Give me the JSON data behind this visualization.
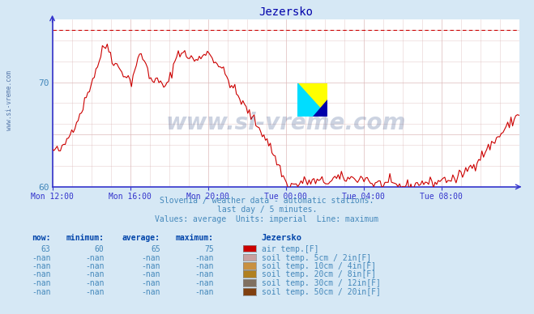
{
  "title": "Jezersko",
  "background_color": "#d6e8f5",
  "plot_bg_color": "#ffffff",
  "grid_color": "#ddbbbb",
  "line_color": "#cc0000",
  "dashed_line_color": "#cc0000",
  "dashed_line_y": 75,
  "ylim": [
    60,
    76
  ],
  "yticks": [
    60,
    65,
    70,
    75
  ],
  "ylabel_vals": [
    "60",
    "70"
  ],
  "subtitle1": "Slovenia / weather data - automatic stations.",
  "subtitle2": "last day / 5 minutes.",
  "subtitle3": "Values: average  Units: imperial  Line: maximum",
  "watermark": "www.si-vreme.com",
  "legend_station": "Jezersko",
  "legend_items": [
    {
      "label": "air temp.[F]",
      "color": "#cc0000"
    },
    {
      "label": "soil temp. 5cm / 2in[F]",
      "color": "#c8a0a0"
    },
    {
      "label": "soil temp. 10cm / 4in[F]",
      "color": "#c89040"
    },
    {
      "label": "soil temp. 20cm / 8in[F]",
      "color": "#b08020"
    },
    {
      "label": "soil temp. 30cm / 12in[F]",
      "color": "#807060"
    },
    {
      "label": "soil temp. 50cm / 20in[F]",
      "color": "#804010"
    }
  ],
  "stats_air": [
    "63",
    "60",
    "65",
    "75"
  ],
  "xtick_labels": [
    "Mon 12:00",
    "Mon 16:00",
    "Mon 20:00",
    "Tue 00:00",
    "Tue 04:00",
    "Tue 08:00"
  ],
  "xtick_positions": [
    0.0,
    0.1667,
    0.3333,
    0.5,
    0.6667,
    0.8333
  ],
  "title_color": "#0000aa",
  "text_color": "#4488bb",
  "axis_color": "#3333cc",
  "watermark_color": "#1a3a7a"
}
